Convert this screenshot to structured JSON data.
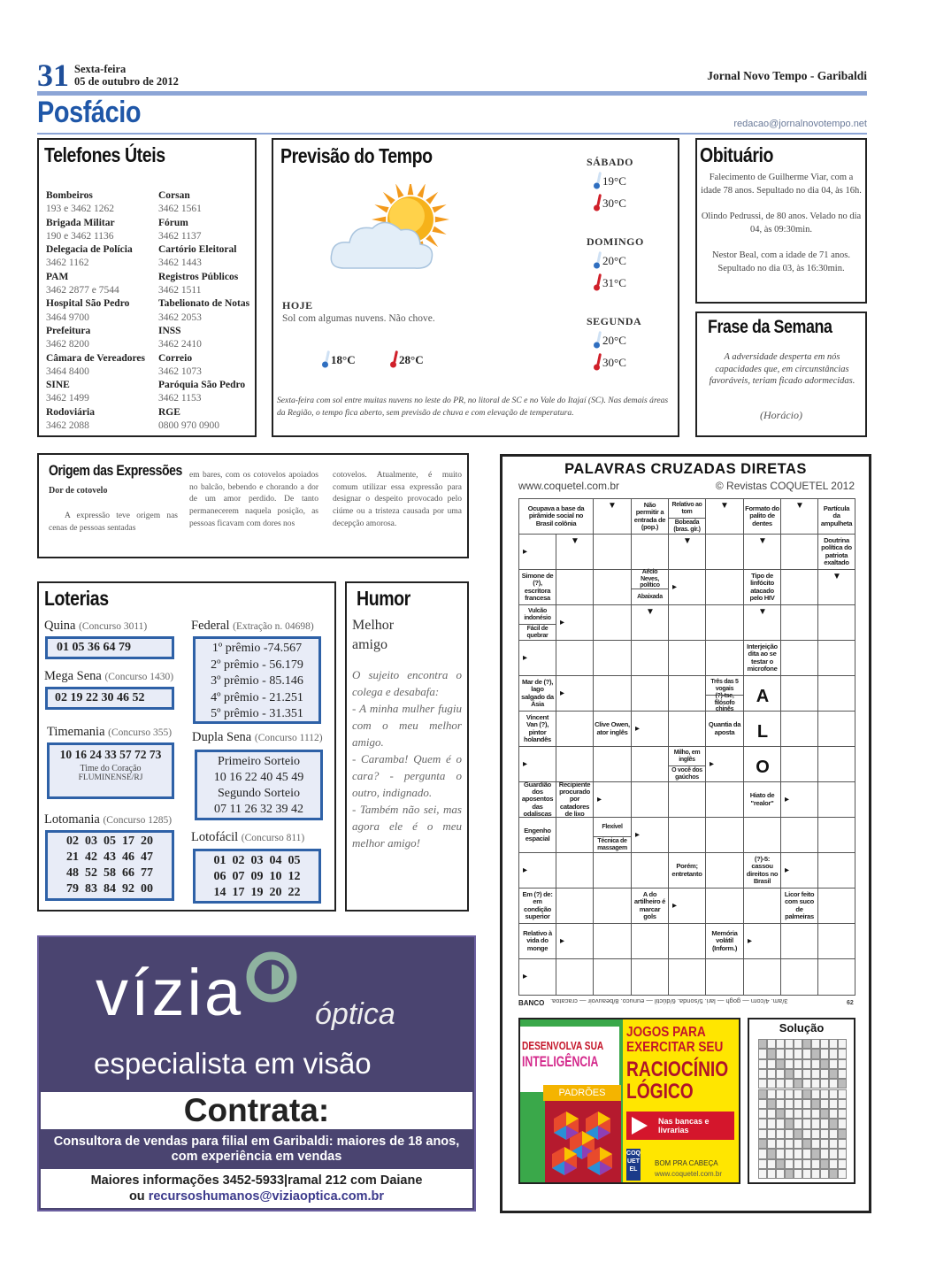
{
  "header": {
    "page_number": "31",
    "weekday": "Sexta-feira",
    "date": "05 de outubro de 2012",
    "publication": "Jornal Novo Tempo - Garibaldi",
    "section": "Posfácio",
    "email": "redacao@jornalnovotempo.net",
    "accent": "#1f4f9a"
  },
  "telefones": {
    "title": "Telefones Úteis",
    "entries": [
      {
        "name": "Bombeiros",
        "phone": "193 e 3462 1262"
      },
      {
        "name": "Corsan",
        "phone": "3462 1561"
      },
      {
        "name": "Brigada Militar",
        "phone": "190 e 3462 1136"
      },
      {
        "name": "Fórum",
        "phone": "3462 1137"
      },
      {
        "name": "Delegacia de Polícia",
        "phone": "3462 1162"
      },
      {
        "name": "Cartório Eleitoral",
        "phone": "3462 1443"
      },
      {
        "name": "PAM",
        "phone": "3462 2877 e 7544"
      },
      {
        "name": "Registros Públicos",
        "phone": "3462 1511"
      },
      {
        "name": "Hospital São Pedro",
        "phone": "3464 9700"
      },
      {
        "name": "Tabelionato de Notas",
        "phone": "3462 2053"
      },
      {
        "name": "Prefeitura",
        "phone": "3462 8200"
      },
      {
        "name": "INSS",
        "phone": "3462 2410"
      },
      {
        "name": "Câmara de Vereadores",
        "phone": "3464 8400"
      },
      {
        "name": "Correio",
        "phone": "3462 1073"
      },
      {
        "name": "SINE",
        "phone": "3462 1499"
      },
      {
        "name": "Paróquia São Pedro",
        "phone": "3462 1153"
      },
      {
        "name": "Rodoviária",
        "phone": "3462 2088"
      },
      {
        "name": "RGE",
        "phone": "0800 970 0900"
      }
    ]
  },
  "tempo": {
    "title": "Previsão do Tempo",
    "today": {
      "label": "HOJE",
      "desc": "Sol com algumas nuvens. Não chove.",
      "min": "18°C",
      "max": "28°C",
      "icon": "sun-cloud-icon"
    },
    "days": [
      {
        "name": "SÁBADO",
        "min": "19°C",
        "max": "30°C",
        "icon": "sun-cloud-icon"
      },
      {
        "name": "DOMINGO",
        "min": "20°C",
        "max": "31°C",
        "icon": "sun-cloud-rain-icon"
      },
      {
        "name": "SEGUNDA",
        "min": "20°C",
        "max": "30°C",
        "icon": "sun-cloud-rain-icon"
      }
    ],
    "note": "Sexta-feira com sol entre muitas nuvens no leste do PR, no litoral de SC e no Vale do Itajaí (SC). Nas demais áreas da Região, o tempo fica aberto, sem previsão de chuva e com elevação de temperatura."
  },
  "obituario": {
    "title": "Obituário",
    "items": [
      "Falecimento de Guilherme Viar, com a idade 78 anos. Sepultado no dia 04, às 16h.",
      "Olindo Pedrussi, de 80 anos. Velado no dia 04, às 09:30min.",
      "Nestor Beal, com a idade de 71 anos. Sepultado no dia 03, às 16:30min."
    ]
  },
  "frase": {
    "title": "Frase da Semana",
    "quote": "A adversidade desperta em nós capacidades que, em circunstâncias favoráveis, teriam ficado adormecidas.",
    "author": "(Horácio)"
  },
  "origem": {
    "title": "Origem das Expressões",
    "subtitle": "Dor de cotovelo",
    "col1": "A expressão teve origem nas cenas de pessoas sentadas",
    "col2": "em bares, com os cotovelos apoiados no balcão, bebendo e chorando a dor de um amor perdido. De tanto permanecerem naquela posição, as pessoas ficavam com dores nos",
    "col3": "cotovelos. Atualmente, é muito comum utilizar essa expressão para designar o despeito provocado pelo ciúme ou a tristeza causada por uma decepção amorosa."
  },
  "loterias": {
    "title": "Loterias",
    "quina": {
      "name": "Quina",
      "contest": "(Concurso 3011)",
      "numbers": "01  05  36  64  79"
    },
    "mega": {
      "name": "Mega Sena",
      "contest": "(Concurso 1430)",
      "numbers": "02  19  22  30  46 52"
    },
    "timemania": {
      "name": "Timemania",
      "contest": "(Concurso 355)",
      "numbers": "10 16 24 33 57 72 73",
      "team_label": "Time do Coração",
      "team": "FLUMINENSE/RJ"
    },
    "lotomania": {
      "name": "Lotomania",
      "contest": "(Concurso 1285)",
      "rows": [
        "02  03  05  17  20",
        "21  42  43  46  47",
        "48  52  58  66  77",
        "79  83  84  92  00"
      ]
    },
    "federal": {
      "name": "Federal",
      "contest": "(Extração n. 04698)",
      "prizes": [
        "1º prêmio -74.567",
        "2º prêmio - 56.179",
        "3º prêmio - 85.146",
        "4º prêmio - 21.251",
        "5º prêmio - 31.351"
      ]
    },
    "dupla": {
      "name": "Dupla Sena",
      "contest": "(Concurso 1112)",
      "first_label": "Primeiro Sorteio",
      "first": "10 16 22 40 45 49",
      "second_label": "Segundo Sorteio",
      "second": "07 11 26 32 39 42"
    },
    "lotofacil": {
      "name": "Lotofácil",
      "contest": "(Concurso 811)",
      "rows": [
        "01  02  03  04  05",
        "06  07  09  10  12",
        "14  17  19  20  22"
      ]
    }
  },
  "humor": {
    "title": "Humor",
    "subtitle": "Melhor amigo",
    "text": "O sujeito encontra o colega e desabafa:\n- A minha mulher fugiu com o meu melhor amigo.\n- Caramba! Quem é o cara? - pergunta o outro, indignado.\n- Também não sei, mas agora ele é o meu melhor amigo!"
  },
  "ad_vizia": {
    "brand": "vízia",
    "brand_sub": "óptica",
    "tagline": "especialista em visão",
    "headline": "Contrata:",
    "job": "Consultora de vendas para filial em Garibaldi: maiores de 18 anos, com experiência em vendas",
    "info_prefix": "Maiores informações 3452-5933|ramal 212 com Daiane",
    "info_or": "ou",
    "email": "recursoshumanos@viziaoptica.com.br",
    "bg": "#4a4470",
    "logo_color": "#8fb3a0"
  },
  "crossword": {
    "title": "PALAVRAS CRUZADAS DIRETAS",
    "site": "www.coquetel.com.br",
    "copyright": "© Revistas COQUETEL 2012",
    "clues": [
      "Ocupava a base da pirâmide social no Brasil colônia",
      "Não permitir a entrada de (pop.)",
      "Relativo ao tom",
      "Bobeada (bras. gír.)",
      "Formato do palito de dentes",
      "Partícula da ampulheta",
      "Doutrina política do patriota exaltado",
      "Simone de (?), escritora francesa",
      "Aécio Neves, político",
      "Abaixada",
      "Tipo de linfócito atacado pelo HIV",
      "Vulcão indonésio",
      "Fácil de quebrar",
      "Interjeição dita ao se testar o microfone",
      "Mar de (?), lago salgado da Ásia",
      "Três das 5 vogais",
      "(?)-tse, filósofo chinês",
      "Vincent Van (?), pintor holandês",
      "Clive Owen, ator inglês",
      "Quantia da aposta",
      "Milho, em inglês",
      "O você dos gaúchos",
      "Guardião dos aposentos das odaliscas",
      "Recipiente procurado por catadores de lixo",
      "Hiato de \"realor\"",
      "Engenho espacial",
      "Flexível",
      "Técnica de massagem",
      "Porém; entretanto",
      "(?)-5: cassou direitos no Brasil",
      "Em (?) de: em condição superior",
      "A do artilheiro é marcar gols",
      "Licor feito com suco de palmeiras",
      "Relativo à vida do monge",
      "Memória volátil (Inform.)"
    ],
    "filled_letters": [
      "A",
      "L",
      "O"
    ],
    "bank_label": "BANCO",
    "bank_text": "3/am. 4/corn — gogh — lari. 5/sonda. 6/dúctil — eunuco. 8/beauvoir — cracatoa.",
    "page_code": "62"
  },
  "ad_coquetel": {
    "book_series": "DESENVOLVA SUA",
    "book_title": "INTELIGÊNCIA",
    "book_sub": "PADRÕES",
    "headline1": "JOGOS PARA EXERCITAR SEU",
    "headline2": "RACIOCÍNIO LÓGICO",
    "badge": "Nas bancas e livrarias",
    "logo": "COQUETEL",
    "slogan": "BOM PRA CABEÇA",
    "site": "www.coquetel.com.br"
  },
  "solucao": {
    "title": "Solução"
  }
}
